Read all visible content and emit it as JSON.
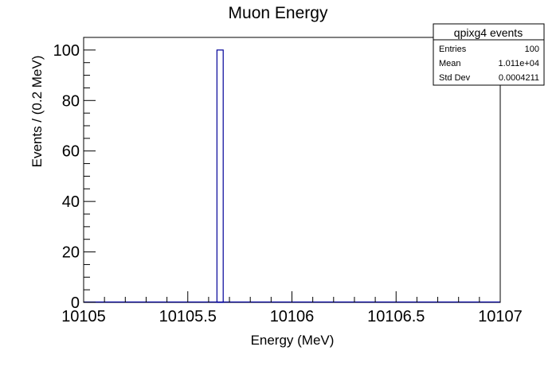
{
  "chart_data": {
    "type": "bar",
    "title": "Muon Energy",
    "xlabel": "Energy (MeV)",
    "ylabel": "Events / (0.2 MeV)",
    "xlim": [
      10105,
      10107
    ],
    "ylim": [
      0,
      105
    ],
    "x_ticks": [
      10105,
      10105.5,
      10106,
      10106.5,
      10107
    ],
    "x_tick_labels": [
      "10105",
      "10105.5",
      "10106",
      "10106.5",
      "10107"
    ],
    "y_ticks": [
      0,
      20,
      40,
      60,
      80,
      100
    ],
    "y_tick_labels": [
      "0",
      "20",
      "40",
      "60",
      "80",
      "100"
    ],
    "grid": false,
    "bins": [
      {
        "x_low": 10105.64,
        "x_high": 10105.67,
        "value": 100
      }
    ],
    "line_color": "#000099",
    "stats_box": {
      "position": "top-right",
      "title": "qpixg4 events",
      "rows": [
        {
          "label": "Entries",
          "value": "100"
        },
        {
          "label": "Mean",
          "value": "1.011e+04"
        },
        {
          "label": "Std Dev",
          "value": "0.0004211"
        }
      ]
    }
  }
}
